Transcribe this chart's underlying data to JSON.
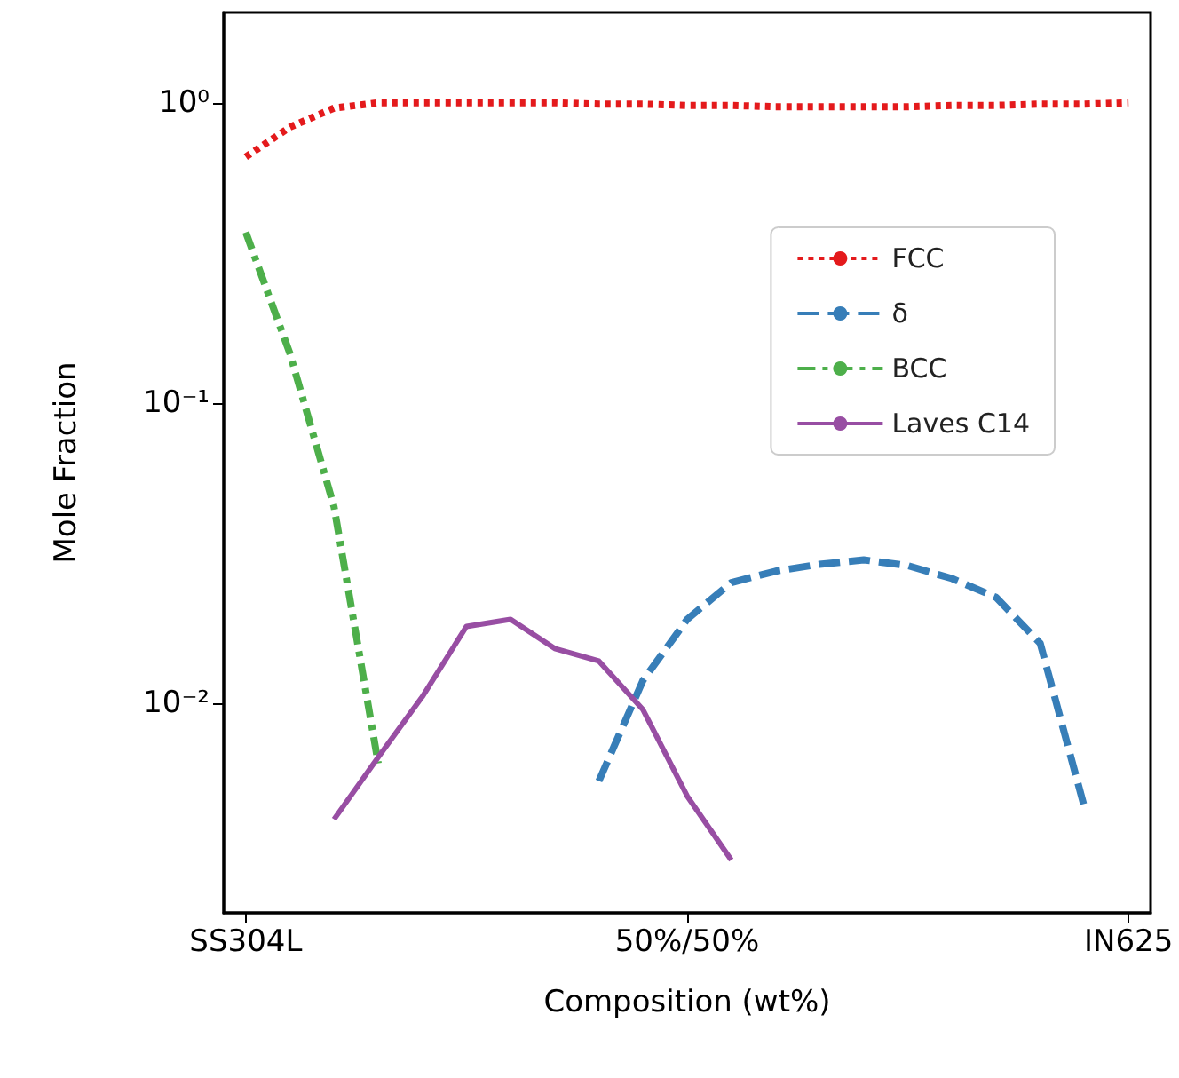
{
  "chart_data": {
    "type": "line",
    "xlabel": "Composition (wt%)",
    "ylabel": "Mole Fraction",
    "categories": [
      "SS304L",
      null,
      null,
      null,
      null,
      null,
      null,
      null,
      null,
      null,
      "50%/50%",
      null,
      null,
      null,
      null,
      null,
      null,
      null,
      null,
      null,
      "IN625"
    ],
    "ylim": [
      0.002,
      2
    ],
    "log": "y",
    "yticks": [
      {
        "value": 0.01,
        "label": "10⁻²"
      },
      {
        "value": 0.1,
        "label": "10⁻¹"
      },
      {
        "value": 1,
        "label": "10⁰"
      }
    ],
    "grid": false,
    "legend": "right",
    "marker": "none",
    "series": [
      {
        "name": "FCC",
        "color": "#e41a1c",
        "line_style": "dotted",
        "values": [
          0.66,
          0.83,
          0.96,
          1.0,
          1.0,
          1.0,
          1.0,
          1.0,
          0.99,
          0.99,
          0.98,
          0.98,
          0.97,
          0.97,
          0.97,
          0.97,
          0.98,
          0.98,
          0.99,
          0.99,
          1.0
        ]
      },
      {
        "name": "δ",
        "color": "#377eb8",
        "line_style": "dashed",
        "values": [
          null,
          null,
          null,
          null,
          null,
          null,
          null,
          null,
          0.0055,
          0.0119,
          0.019,
          0.0252,
          0.0275,
          0.029,
          0.03,
          0.0287,
          0.026,
          0.0225,
          0.0158,
          0.0045,
          null
        ]
      },
      {
        "name": "BCC",
        "color": "#4daf4a",
        "line_style": "dashdot",
        "values": [
          0.37,
          0.146,
          0.045,
          0.0063,
          null,
          null,
          null,
          null,
          null,
          null,
          null,
          null,
          null,
          null,
          null,
          null,
          null,
          null,
          null,
          null,
          null
        ]
      },
      {
        "name": "Laves C14",
        "color": "#984ea3",
        "line_style": "solid",
        "values": [
          null,
          null,
          0.0041,
          0.0066,
          0.0105,
          0.018,
          0.019,
          0.0152,
          0.0138,
          0.0095,
          0.0049,
          0.003,
          null,
          null,
          null,
          null,
          null,
          null,
          null,
          null,
          null
        ]
      }
    ]
  }
}
